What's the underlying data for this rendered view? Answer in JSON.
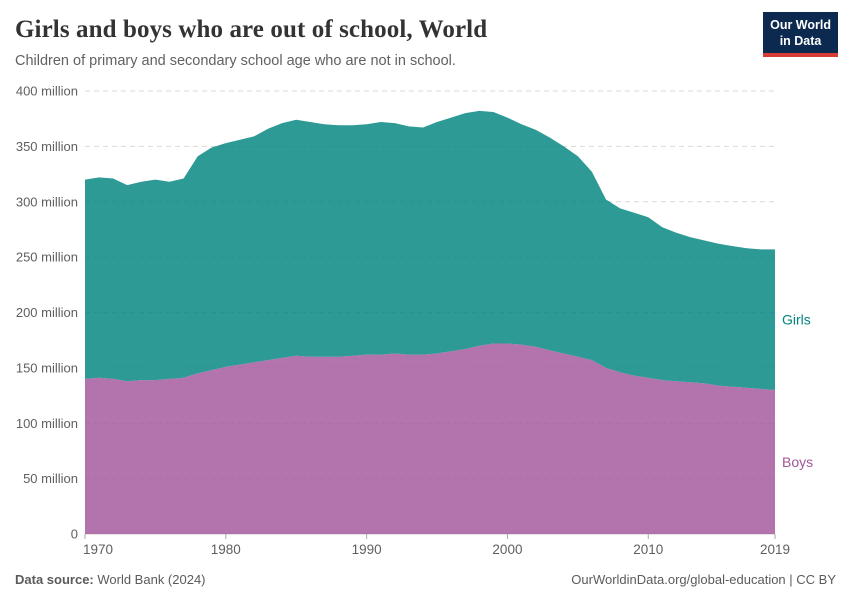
{
  "header": {
    "title": "Girls and boys who are out of school, World",
    "subtitle": "Children of primary and secondary school age who are not in school.",
    "logo": {
      "line1": "Our World",
      "line2": "in Data"
    }
  },
  "chart_data": {
    "type": "area",
    "stacked": true,
    "title": "Girls and boys who are out of school, World",
    "xlabel": "",
    "ylabel": "",
    "ylim": [
      0,
      400
    ],
    "ytick_interval": 50,
    "ytick_suffix": " million",
    "xticks": [
      1970,
      1980,
      1990,
      2000,
      2010,
      2019
    ],
    "grid": "dashed",
    "legend_position": "right-edge-labels",
    "x": [
      1970,
      1971,
      1972,
      1973,
      1974,
      1975,
      1976,
      1977,
      1978,
      1979,
      1980,
      1981,
      1982,
      1983,
      1984,
      1985,
      1986,
      1987,
      1988,
      1989,
      1990,
      1991,
      1992,
      1993,
      1994,
      1995,
      1996,
      1997,
      1998,
      1999,
      2000,
      2001,
      2002,
      2003,
      2004,
      2005,
      2006,
      2007,
      2008,
      2009,
      2010,
      2011,
      2012,
      2013,
      2014,
      2015,
      2016,
      2017,
      2018,
      2019
    ],
    "series": [
      {
        "name": "Boys",
        "color": "#a2559c",
        "values": [
          140,
          141,
          140,
          138,
          139,
          139,
          140,
          141,
          145,
          148,
          151,
          153,
          155,
          157,
          159,
          161,
          160,
          160,
          160,
          161,
          162,
          162,
          163,
          162,
          162,
          163,
          165,
          167,
          170,
          172,
          172,
          171,
          169,
          166,
          163,
          160,
          157,
          150,
          146,
          143,
          141,
          139,
          138,
          137,
          136,
          134,
          133,
          132,
          131,
          130
        ]
      },
      {
        "name": "Girls",
        "color": "#00847e",
        "values": [
          180,
          181,
          181,
          177,
          179,
          181,
          178,
          180,
          196,
          201,
          202,
          203,
          204,
          209,
          212,
          213,
          212,
          210,
          209,
          208,
          208,
          210,
          208,
          206,
          205,
          209,
          211,
          213,
          212,
          209,
          204,
          199,
          196,
          192,
          187,
          181,
          170,
          152,
          148,
          147,
          145,
          138,
          134,
          131,
          129,
          128,
          127,
          126,
          126,
          127
        ]
      }
    ]
  },
  "footer": {
    "datasource_label": "Data source:",
    "datasource_value": " World Bank (2024)",
    "attribution": "OurWorldinData.org/global-education | CC BY"
  },
  "colors": {
    "grid": "#d9d9d9",
    "axis_text": "#5f5f5f",
    "tick": "#a8a8a8",
    "baseline": "#cfcfcf",
    "fill_opacity": 0.82,
    "logo_bg": "#0c2a50",
    "logo_bar": "#d73c34",
    "girls": "#00847e",
    "boys": "#a2559c"
  }
}
